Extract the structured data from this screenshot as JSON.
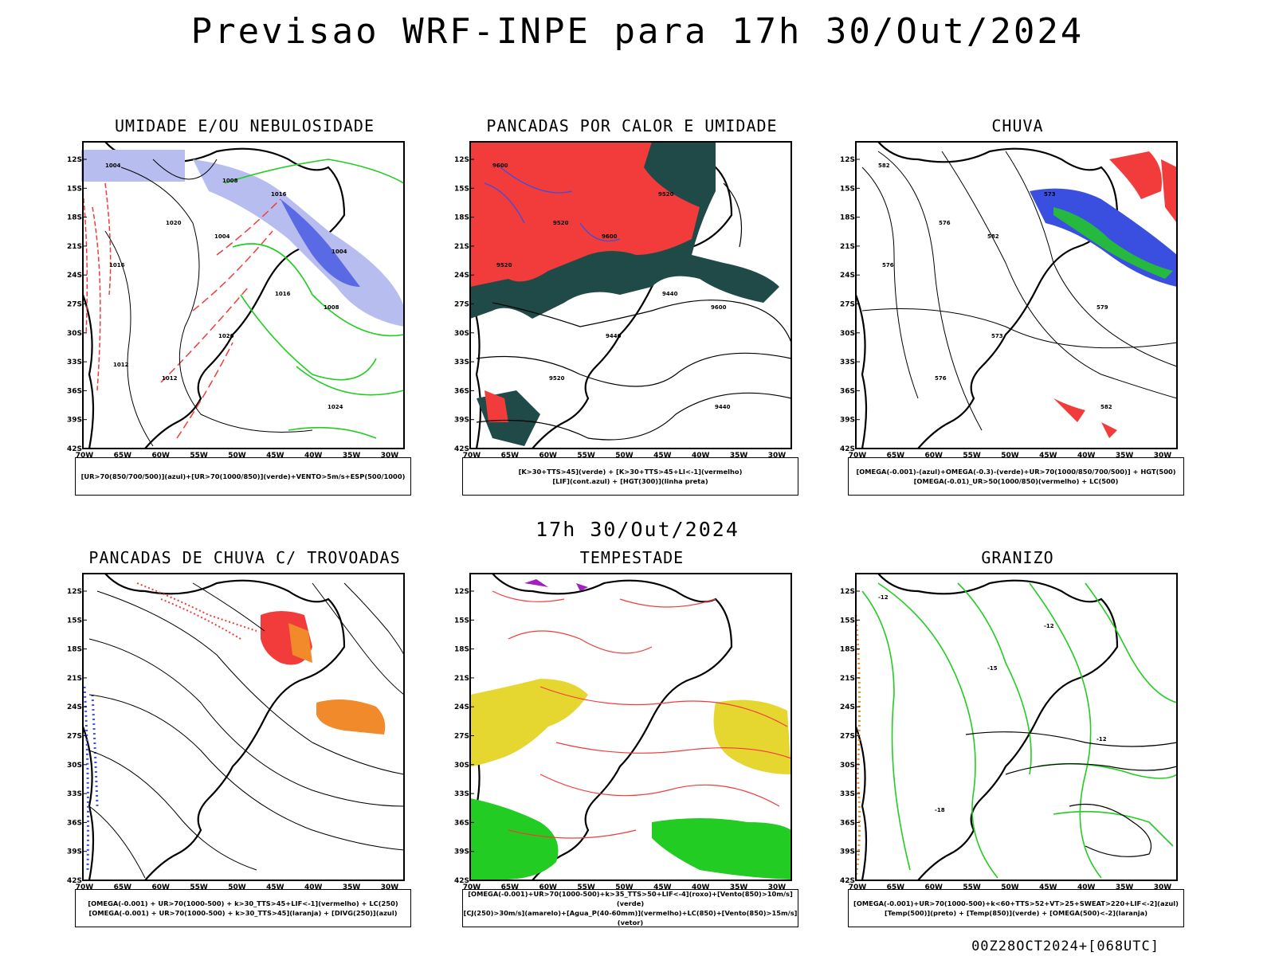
{
  "main_title": "Previsao WRF-INPE  para 17h 30/Out/2024",
  "mid_title": "17h 30/Out/2024",
  "footer": "00Z28OCT2024+[068UTC]",
  "lat_labels": [
    "12S",
    "15S",
    "18S",
    "21S",
    "24S",
    "27S",
    "30S",
    "33S",
    "36S",
    "39S",
    "42S"
  ],
  "lon_labels": [
    "70W",
    "65W",
    "60W",
    "55W",
    "50W",
    "45W",
    "40W",
    "35W",
    "30W"
  ],
  "panels": [
    {
      "title": "UMIDADE E/OU NEBULOSIDADE",
      "caption": [
        "[UR>70(850/700/500)](azul)+[UR>70(1000/850)](verde)+VENTO>5m/s+ESP(500/1000)"
      ],
      "contour_labels": [
        "1004",
        "1004",
        "1008",
        "1012",
        "1016",
        "1016",
        "1020",
        "1024",
        "1020",
        "1016",
        "1012",
        "1008",
        "1004"
      ]
    },
    {
      "title": "PANCADAS POR CALOR E UMIDADE",
      "caption": [
        "[K>30+TTS>45](verde) + [K>30+TTS>45+LI<-1](vermelho)",
        "[LIF](cont.azul) + [HGT(300)](linha preta)"
      ],
      "contour_labels": [
        "9600",
        "9600",
        "9600",
        "9520",
        "9520",
        "9520",
        "9440",
        "9440",
        "9520",
        "9440"
      ]
    },
    {
      "title": "CHUVA",
      "caption": [
        "[OMEGA(-0.001)-(azul)+OMEGA(-0.3)-(verde)+UR>70(1000/850/700/500)] + HGT(500)",
        "[OMEGA(-0.01)_UR>50(1000/850)(vermelho) + LC(500)"
      ],
      "contour_labels": [
        "582",
        "582",
        "579",
        "576",
        "573",
        "576",
        "573",
        "582",
        "576"
      ]
    },
    {
      "title": "PANCADAS DE CHUVA C/ TROVOADAS",
      "caption": [
        "[OMEGA(-0.001) + UR>70(1000-500) + k>30_TTS>45+LIF<-1](vermelho) + LC(250)",
        "[OMEGA(-0.001) + UR>70(1000-500) + k>30_TTS>45](laranja) + [DIVG(250)](azul)"
      ],
      "contour_labels": []
    },
    {
      "title": "TEMPESTADE",
      "caption": [
        "[OMEGA(-0.001)+UR>70(1000-500)+k>35_TTS>50+LIF<-4](roxo)+[Vento(850)>10m/s](verde)",
        "[CJ(250)>30m/s](amarelo)+[Agua_P(40-60mm)](vermelho)+LC(850)+[Vento(850)>15m/s](vetor)"
      ],
      "contour_labels": []
    },
    {
      "title": "GRANIZO",
      "caption": [
        "[OMEGA(-0.001)+UR>70(1000-500)+k<60+TTS>52+VT>25+SWEAT>220+LIF<-2](azul)",
        "[Temp(500)](preto) + [Temp(850)](verde) + [OMEGA(500)<-2](laranja)"
      ],
      "contour_labels": [
        "-12",
        "-15",
        "-12",
        "-18",
        "-12"
      ]
    }
  ],
  "colors": {
    "blue": "#3a4fe0",
    "light_blue": "#b8bdf0",
    "green": "#22cc22",
    "red": "#f23c3c",
    "dark_teal": "#1f4a48",
    "orange": "#f08a2a",
    "yellow": "#e6d630",
    "purple": "#a020c0"
  }
}
